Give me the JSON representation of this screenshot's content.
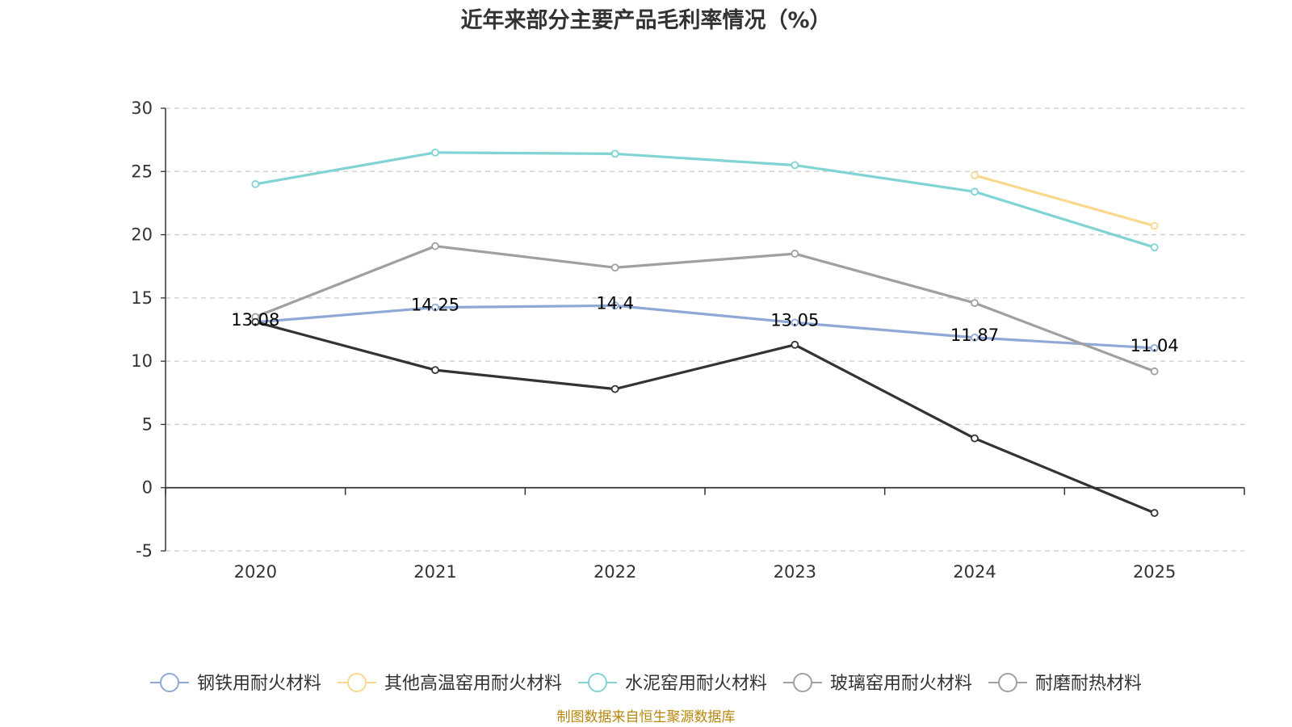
{
  "chart_data": {
    "type": "line",
    "title": "近年来部分主要产品毛利率情况（%）",
    "categories": [
      "2020",
      "2021",
      "2022",
      "2023",
      "2024",
      "2025"
    ],
    "ylim": [
      -5,
      30
    ],
    "yticks": [
      -5,
      0,
      5,
      10,
      15,
      20,
      25,
      30
    ],
    "grid": true,
    "legend_position": "bottom",
    "series": [
      {
        "name": "钢铁用耐火材料",
        "color": "#8fa9d6",
        "values": [
          13.08,
          14.25,
          14.4,
          13.05,
          11.87,
          11.04
        ],
        "data_labels": [
          "13.08",
          "14.25",
          "14.4",
          "13.05",
          "11.87",
          "11.04"
        ]
      },
      {
        "name": "其他高温窑用耐火材料",
        "color": "#fad88e",
        "values": [
          null,
          null,
          null,
          null,
          24.7,
          20.7
        ]
      },
      {
        "name": "水泥窑用耐火材料",
        "color": "#82d3d3",
        "values": [
          24.0,
          26.5,
          26.4,
          25.5,
          23.4,
          19.0
        ]
      },
      {
        "name": "玻璃窑用耐火材料",
        "color": "#a0a0a0",
        "values": [
          13.5,
          19.1,
          17.4,
          18.5,
          14.6,
          9.2
        ]
      },
      {
        "name": "耐磨耐热材料",
        "color": "#333333",
        "legend_color": "#a0a0a0",
        "values": [
          13.1,
          9.3,
          7.8,
          11.3,
          3.9,
          -2.0
        ]
      }
    ]
  },
  "source": "制图数据来自恒生聚源数据库"
}
